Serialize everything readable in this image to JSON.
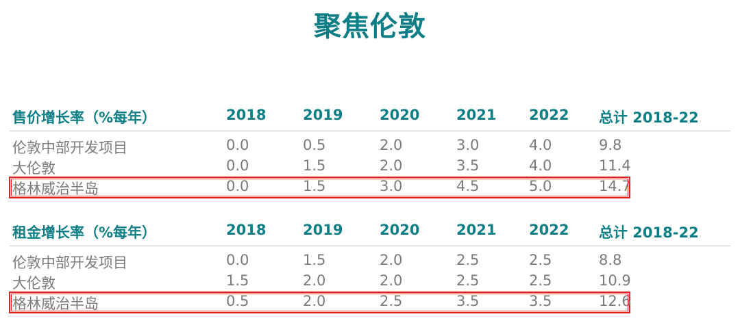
{
  "title": "聚焦伦敦",
  "chart_data": [
    {
      "type": "table",
      "title": "售价增长率（%每年）",
      "columns": [
        "2018",
        "2019",
        "2020",
        "2021",
        "2022",
        "总计 2018-22"
      ],
      "rows": [
        {
          "label": "伦敦中部开发项目",
          "values": [
            "0.0",
            "0.5",
            "2.0",
            "3.0",
            "4.0",
            "9.8"
          ],
          "highlighted": false
        },
        {
          "label": "大伦敦",
          "values": [
            "0.0",
            "1.5",
            "2.0",
            "3.5",
            "4.0",
            "11.4"
          ],
          "highlighted": false
        },
        {
          "label": "格林威治半岛",
          "values": [
            "0.0",
            "1.5",
            "3.0",
            "4.5",
            "5.0",
            "14.7"
          ],
          "highlighted": true
        }
      ]
    },
    {
      "type": "table",
      "title": "租金增长率（%每年）",
      "columns": [
        "2018",
        "2019",
        "2020",
        "2021",
        "2022",
        "总计 2018-22"
      ],
      "rows": [
        {
          "label": "伦敦中部开发项目",
          "values": [
            "0.0",
            "1.5",
            "2.0",
            "2.5",
            "2.5",
            "8.8"
          ],
          "highlighted": false
        },
        {
          "label": "大伦敦",
          "values": [
            "1.5",
            "2.0",
            "2.0",
            "2.5",
            "2.5",
            "10.9"
          ],
          "highlighted": false
        },
        {
          "label": "格林威治半岛",
          "values": [
            "0.5",
            "2.0",
            "2.5",
            "3.5",
            "3.5",
            "12.6"
          ],
          "highlighted": true
        }
      ]
    }
  ],
  "colors": {
    "accent": "#0e7f86",
    "body_text": "#7a7a7a",
    "highlight_box": "#e1211f",
    "rule": "#c9c9c9"
  }
}
